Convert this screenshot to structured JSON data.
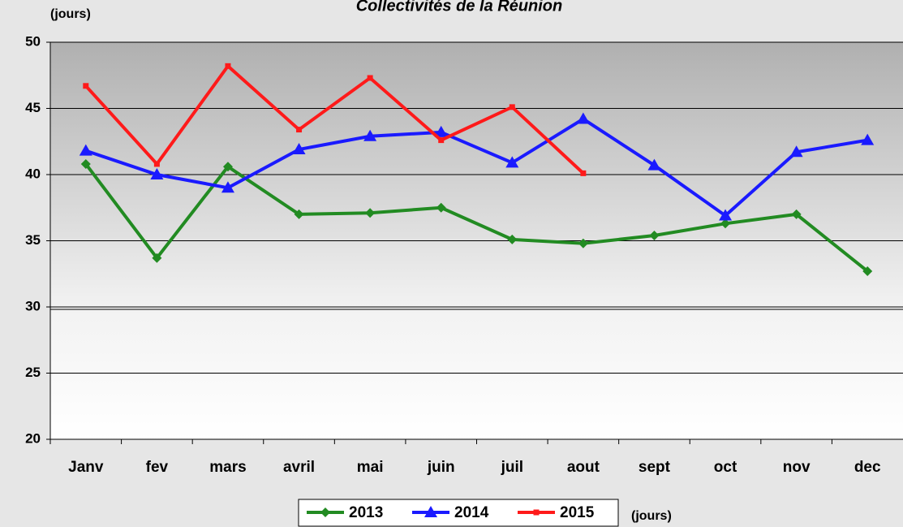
{
  "chart_data": {
    "type": "line",
    "title": "Collectivités de la Réunion",
    "y_unit_label": "(jours)",
    "legend_unit_label": "(jours)",
    "categories": [
      "Janv",
      "fev",
      "mars",
      "avril",
      "mai",
      "juin",
      "juil",
      "aout",
      "sept",
      "oct",
      "nov",
      "dec"
    ],
    "series": [
      {
        "name": "2013",
        "color": "#228b22",
        "marker": "diamond",
        "values": [
          40.8,
          33.7,
          40.6,
          37.0,
          37.1,
          37.5,
          35.1,
          34.8,
          35.4,
          36.3,
          37.0,
          32.7
        ]
      },
      {
        "name": "2014",
        "color": "#1a1aff",
        "marker": "triangle",
        "values": [
          41.8,
          40.0,
          39.0,
          41.9,
          42.9,
          43.2,
          40.9,
          44.2,
          40.7,
          36.9,
          41.7,
          42.6
        ]
      },
      {
        "name": "2015",
        "color": "#ff1a1a",
        "marker": "square",
        "values": [
          46.7,
          40.8,
          48.2,
          43.4,
          47.3,
          42.6,
          45.1,
          40.1,
          null,
          null,
          null,
          null
        ]
      }
    ],
    "ylim": [
      20,
      50
    ],
    "yticks": [
      20,
      25,
      30,
      35,
      40,
      45,
      50
    ],
    "grid": true,
    "legend": "bottom"
  }
}
